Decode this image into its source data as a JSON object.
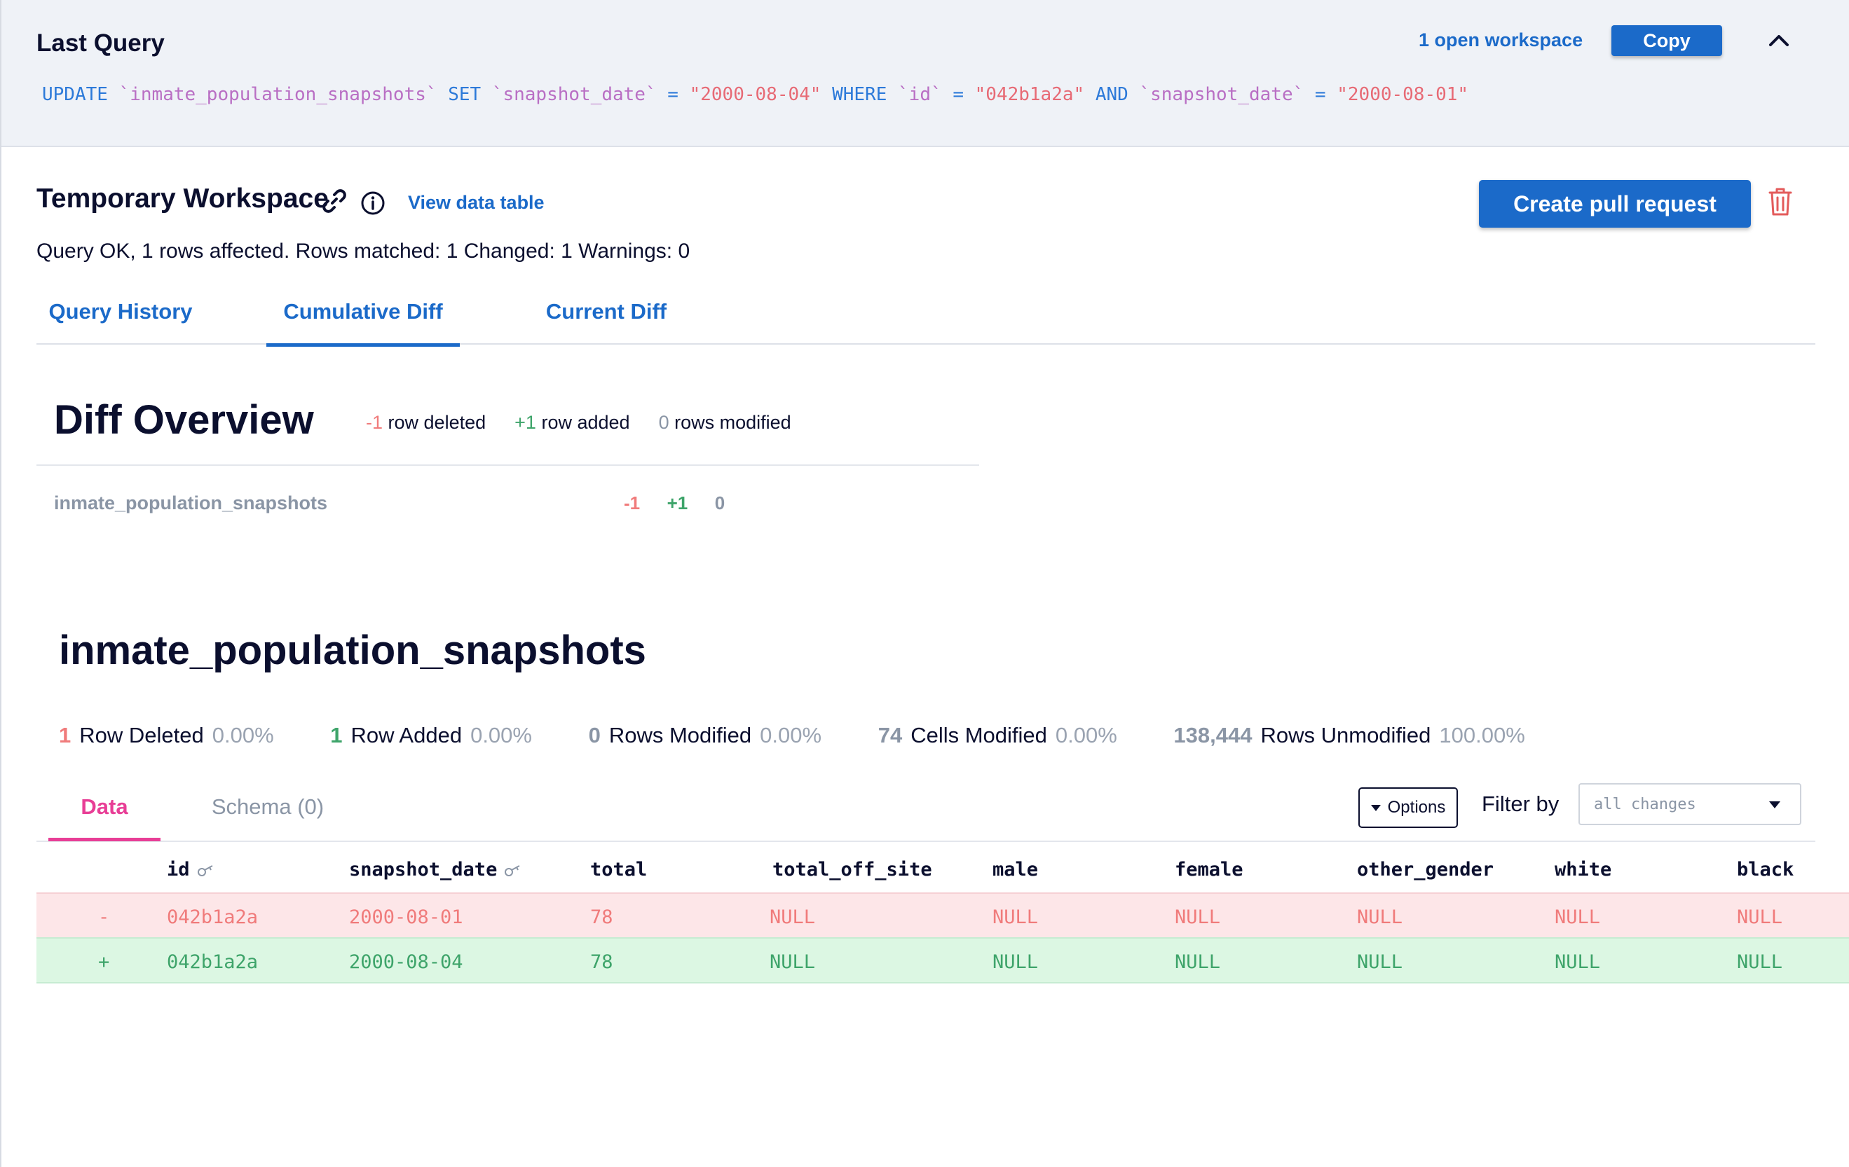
{
  "last_query": {
    "title": "Last Query",
    "open_workspace": "1 open workspace",
    "copy_label": "Copy",
    "sql": {
      "kw_update": "UPDATE",
      "table": "`inmate_population_snapshots`",
      "kw_set": "SET",
      "col1": "`snapshot_date`",
      "eq": "=",
      "val1": "\"2000-08-04\"",
      "kw_where": "WHERE",
      "col2": "`id`",
      "val2": "\"042b1a2a\"",
      "kw_and": "AND",
      "col3": "`snapshot_date`",
      "val3": "\"2000-08-01\""
    }
  },
  "workspace": {
    "title": "Temporary Workspace",
    "view_data": "View data table",
    "create_pr": "Create pull request",
    "status": "Query OK, 1 rows affected. Rows matched: 1 Changed: 1 Warnings: 0"
  },
  "tabs": [
    "Query History",
    "Cumulative Diff",
    "Current Diff"
  ],
  "diff_overview": {
    "title": "Diff Overview",
    "deleted_num": "-1",
    "deleted_label": "row deleted",
    "added_num": "+1",
    "added_label": "row added",
    "modified_num": "0",
    "modified_label": "rows modified",
    "table_name": "inmate_population_snapshots",
    "table_deleted": "-1",
    "table_added": "+1",
    "table_modified": "0"
  },
  "table_section": {
    "title": "inmate_population_snapshots",
    "stats": [
      {
        "num": "1",
        "label": "Row Deleted",
        "pct": "0.00%"
      },
      {
        "num": "1",
        "label": "Row Added",
        "pct": "0.00%"
      },
      {
        "num": "0",
        "label": "Rows Modified",
        "pct": "0.00%"
      },
      {
        "num": "74",
        "label": "Cells Modified",
        "pct": "0.00%"
      },
      {
        "num": "138,444",
        "label": "Rows Unmodified",
        "pct": "100.00%"
      }
    ],
    "subtabs": [
      "Data",
      "Schema (0)"
    ],
    "options_label": "Options",
    "filter_label": "Filter by",
    "filter_value": "all changes",
    "columns": [
      "id",
      "snapshot_date",
      "total",
      "total_off_site",
      "male",
      "female",
      "other_gender",
      "white",
      "black"
    ],
    "rows": [
      {
        "marker": "-",
        "cells": [
          "042b1a2a",
          "2000-08-01",
          "78",
          "NULL",
          "NULL",
          "NULL",
          "NULL",
          "NULL",
          "NULL"
        ]
      },
      {
        "marker": "+",
        "cells": [
          "042b1a2a",
          "2000-08-04",
          "78",
          "NULL",
          "NULL",
          "NULL",
          "NULL",
          "NULL",
          "NULL"
        ]
      }
    ]
  },
  "colors": {
    "accent": "#1b6ac9",
    "pink_accent": "#e83e96",
    "deleted": "#f07b7b",
    "added": "#3ea46a"
  }
}
